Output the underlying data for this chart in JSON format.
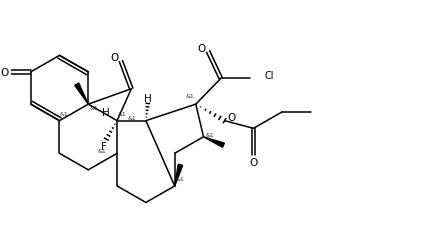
{
  "bg_color": "#ffffff",
  "line_color": "#000000",
  "lw": 1.1,
  "fs": 6.5,
  "xlim": [
    0,
    10.5
  ],
  "ylim": [
    0,
    6.5
  ]
}
